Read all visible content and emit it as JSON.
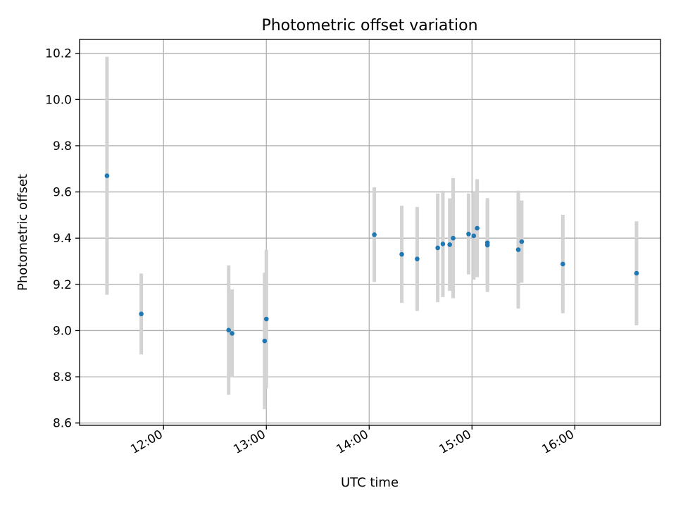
{
  "chart_data": {
    "type": "scatter",
    "title": "Photometric offset variation",
    "xlabel": "UTC time",
    "ylabel": "Photometric offset",
    "x_ticks": [
      "12:00",
      "13:00",
      "14:00",
      "15:00",
      "16:00"
    ],
    "y_ticks": [
      "8.6",
      "8.8",
      "9.0",
      "9.2",
      "9.4",
      "9.6",
      "9.8",
      "10.0",
      "10.2"
    ],
    "xlim": [
      "11:11",
      "16:50"
    ],
    "ylim": [
      8.59,
      10.26
    ],
    "grid": true,
    "colors": {
      "point": "#1f77b4",
      "errorbar": "#d3d3d3",
      "grid": "#b0b0b0"
    },
    "points": [
      {
        "x": "11:27",
        "y": 9.67,
        "err": 0.515
      },
      {
        "x": "11:47",
        "y": 9.072,
        "err": 0.175
      },
      {
        "x": "12:38",
        "y": 9.002,
        "err": 0.28
      },
      {
        "x": "12:40",
        "y": 8.988,
        "err": 0.19
      },
      {
        "x": "12:59",
        "y": 8.955,
        "err": 0.295
      },
      {
        "x": "13:00",
        "y": 9.05,
        "err": 0.3
      },
      {
        "x": "14:03",
        "y": 9.415,
        "err": 0.205
      },
      {
        "x": "14:19",
        "y": 9.33,
        "err": 0.21
      },
      {
        "x": "14:28",
        "y": 9.31,
        "err": 0.225
      },
      {
        "x": "14:40",
        "y": 9.358,
        "err": 0.235
      },
      {
        "x": "14:43",
        "y": 9.375,
        "err": 0.23
      },
      {
        "x": "14:47",
        "y": 9.372,
        "err": 0.2
      },
      {
        "x": "14:49",
        "y": 9.4,
        "err": 0.26
      },
      {
        "x": "14:58",
        "y": 9.418,
        "err": 0.175
      },
      {
        "x": "15:01",
        "y": 9.41,
        "err": 0.19
      },
      {
        "x": "15:03",
        "y": 9.443,
        "err": 0.212
      },
      {
        "x": "15:09",
        "y": 9.37,
        "err": 0.203
      },
      {
        "x": "15:09",
        "y": 9.38,
        "err": 0.178
      },
      {
        "x": "15:27",
        "y": 9.35,
        "err": 0.255
      },
      {
        "x": "15:29",
        "y": 9.385,
        "err": 0.178
      },
      {
        "x": "15:53",
        "y": 9.288,
        "err": 0.213
      },
      {
        "x": "16:36",
        "y": 9.248,
        "err": 0.225
      }
    ]
  }
}
